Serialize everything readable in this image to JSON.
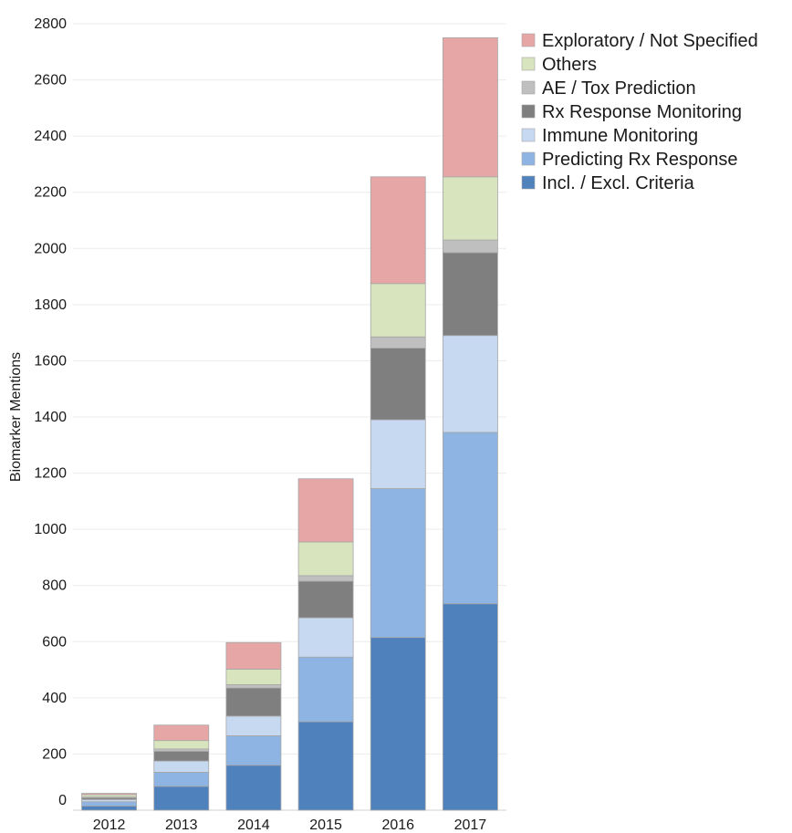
{
  "chart_data": {
    "type": "bar",
    "stacked": true,
    "categories": [
      "2012",
      "2013",
      "2014",
      "2015",
      "2016",
      "2017"
    ],
    "ylabel": "Biomarker Mentions",
    "ylim": [
      0,
      2800
    ],
    "yticks": [
      0,
      200,
      400,
      600,
      800,
      1000,
      1200,
      1400,
      1600,
      1800,
      2000,
      2200,
      2400,
      2600,
      2800
    ],
    "grid": true,
    "legend_position": "top-right",
    "series": [
      {
        "name": "Incl. / Excl. Criteria",
        "color": "#4F81BD",
        "values": [
          15,
          85,
          160,
          315,
          615,
          735
        ]
      },
      {
        "name": "Predicting Rx Response",
        "color": "#8EB4E3",
        "values": [
          15,
          50,
          105,
          230,
          530,
          610
        ]
      },
      {
        "name": "Immune Monitoring",
        "color": "#C6D9F1",
        "values": [
          8,
          40,
          70,
          140,
          245,
          345
        ]
      },
      {
        "name": "Rx Response Monitoring",
        "color": "#7F7F7F",
        "values": [
          6,
          35,
          100,
          130,
          255,
          295
        ]
      },
      {
        "name": "AE / Tox Prediction",
        "color": "#BFBFBF",
        "values": [
          3,
          8,
          12,
          20,
          40,
          45
        ]
      },
      {
        "name": "Others",
        "color": "#D7E4BD",
        "values": [
          8,
          30,
          55,
          120,
          190,
          225
        ]
      },
      {
        "name": "Exploratory / Not Specified",
        "color": "#E6A6A6",
        "values": [
          5,
          55,
          95,
          225,
          380,
          495
        ]
      }
    ]
  }
}
